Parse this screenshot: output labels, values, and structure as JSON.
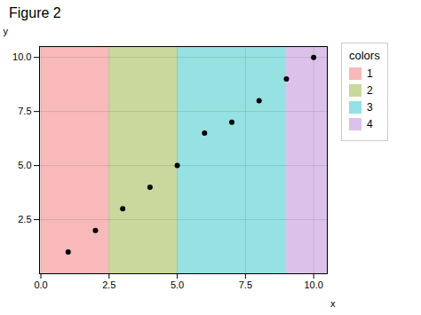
{
  "chart_data": {
    "type": "scatter",
    "title": "Figure 2",
    "xlabel": "x",
    "ylabel": "y",
    "x": [
      1,
      2,
      3,
      4,
      5,
      6,
      7,
      8,
      9,
      10
    ],
    "values": [
      1,
      2,
      3,
      4,
      5,
      6.5,
      7,
      8,
      9,
      10
    ],
    "color": "black",
    "xlim": [
      -0.05,
      10.5
    ],
    "ylim": [
      0.0,
      10.5
    ],
    "xticks": [
      {
        "value": 0,
        "label": "0.0"
      },
      2.5,
      {
        "value": 5,
        "label": "5.0"
      },
      7.5,
      {
        "value": 10,
        "label": "10.0"
      }
    ],
    "yticks": [
      2.5,
      {
        "value": 5,
        "label": "5.0"
      },
      7.5,
      {
        "value": 10,
        "label": "10.0"
      }
    ],
    "regions": [
      {
        "name": "1",
        "xmin": 0.0,
        "xmax": 2.5,
        "color": "#F08080"
      },
      {
        "name": "2",
        "xmin": 2.5,
        "xmax": 5.0,
        "color": "#9DB84A"
      },
      {
        "name": "3",
        "xmin": 5.0,
        "xmax": 9.0,
        "color": "#40C8C8"
      },
      {
        "name": "4",
        "xmin": 9.0,
        "xmax": 10.5,
        "color": "#C090D8"
      }
    ],
    "legend_title": "colors",
    "grid": true
  }
}
